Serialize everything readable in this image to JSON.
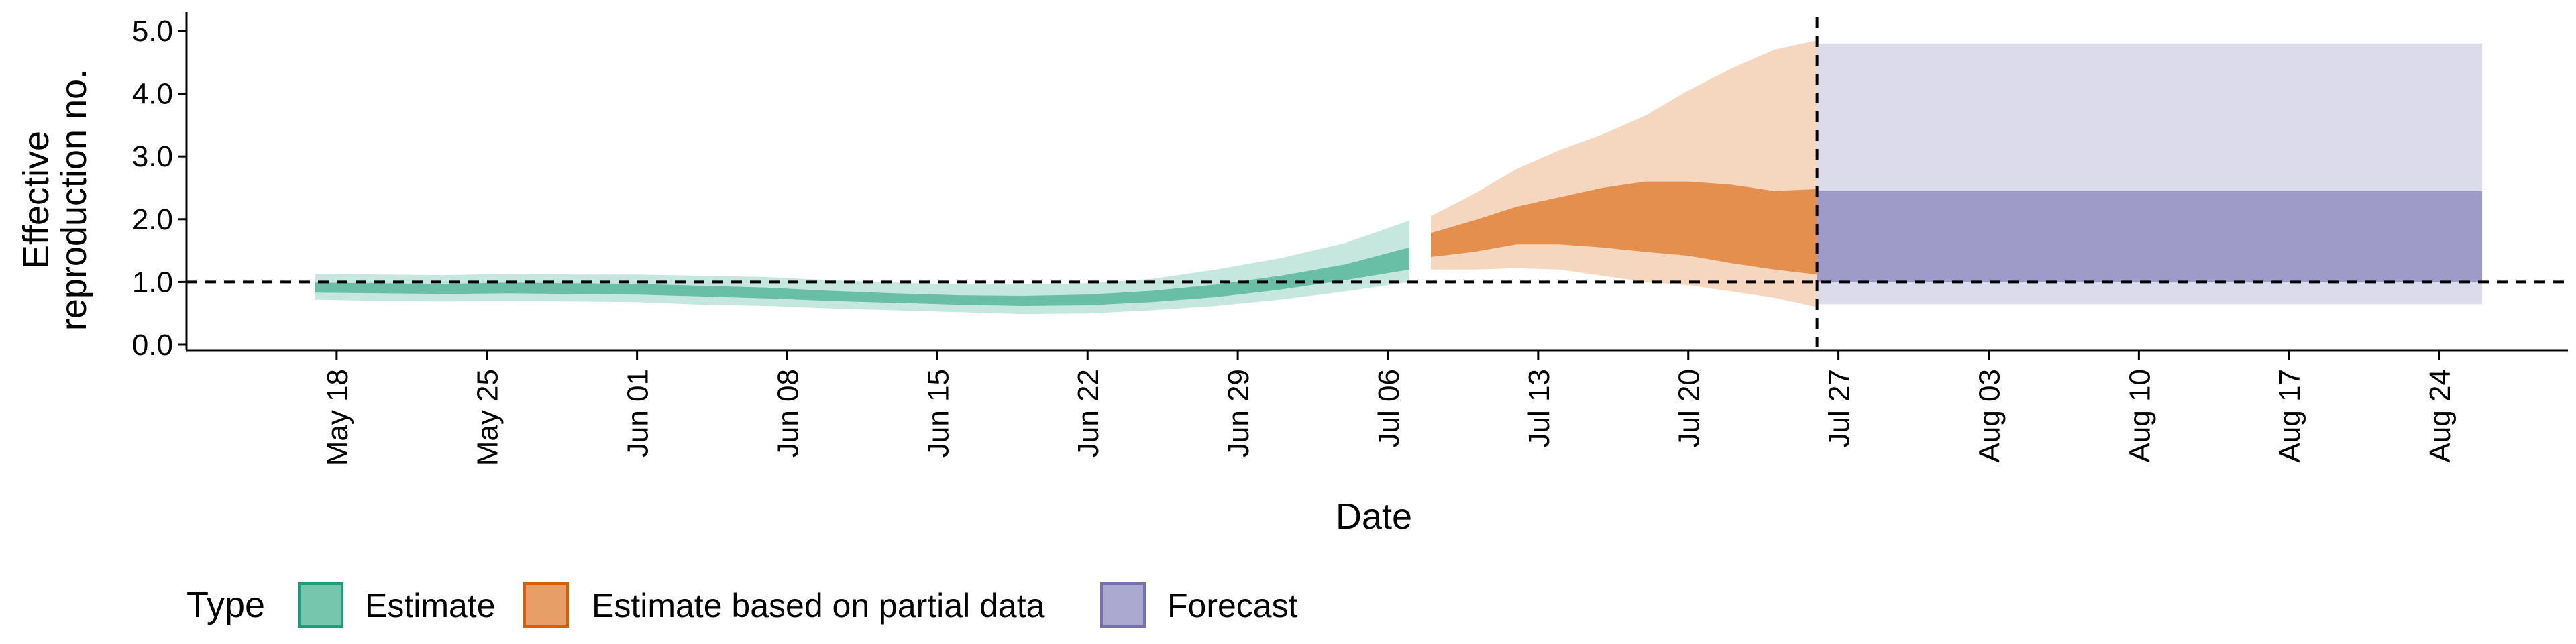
{
  "chart_data": {
    "type": "area",
    "xlabel": "Date",
    "ylabel": [
      "Effective",
      "reproduction no."
    ],
    "ylim": [
      0,
      5
    ],
    "y_ticks": [
      "0.0",
      "1.0",
      "2.0",
      "3.0",
      "4.0",
      "5.0"
    ],
    "y_tick_values": [
      0,
      1,
      2,
      3,
      4,
      5
    ],
    "x_ticks": [
      {
        "label": "May 18",
        "date": "2020-05-18"
      },
      {
        "label": "May 25",
        "date": "2020-05-25"
      },
      {
        "label": "Jun 01",
        "date": "2020-06-01"
      },
      {
        "label": "Jun 08",
        "date": "2020-06-08"
      },
      {
        "label": "Jun 15",
        "date": "2020-06-15"
      },
      {
        "label": "Jun 22",
        "date": "2020-06-22"
      },
      {
        "label": "Jun 29",
        "date": "2020-06-29"
      },
      {
        "label": "Jul 06",
        "date": "2020-07-06"
      },
      {
        "label": "Jul 13",
        "date": "2020-07-13"
      },
      {
        "label": "Jul 20",
        "date": "2020-07-20"
      },
      {
        "label": "Jul 27",
        "date": "2020-07-27"
      },
      {
        "label": "Aug 03",
        "date": "2020-08-03"
      },
      {
        "label": "Aug 10",
        "date": "2020-08-10"
      },
      {
        "label": "Aug 17",
        "date": "2020-08-17"
      },
      {
        "label": "Aug 24",
        "date": "2020-08-24"
      }
    ],
    "xlim": [
      "2020-05-11",
      "2020-08-30"
    ],
    "reference_line_y": 1.0,
    "forecast_start": "2020-07-26",
    "legend_title": "Type",
    "legend_position": "bottom",
    "series": [
      {
        "name": "Estimate",
        "color": "#1b9e77",
        "outer_opacity": 0.25,
        "inner_opacity": 0.55,
        "x": [
          "2020-05-17",
          "2020-05-20",
          "2020-05-23",
          "2020-05-26",
          "2020-05-29",
          "2020-06-01",
          "2020-06-04",
          "2020-06-07",
          "2020-06-10",
          "2020-06-13",
          "2020-06-16",
          "2020-06-19",
          "2020-06-22",
          "2020-06-25",
          "2020-06-28",
          "2020-07-01",
          "2020-07-04",
          "2020-07-07"
        ],
        "outer_lower": [
          0.72,
          0.7,
          0.69,
          0.7,
          0.69,
          0.68,
          0.64,
          0.62,
          0.58,
          0.55,
          0.52,
          0.49,
          0.5,
          0.55,
          0.62,
          0.72,
          0.85,
          1.0
        ],
        "outer_upper": [
          1.13,
          1.12,
          1.11,
          1.13,
          1.12,
          1.12,
          1.1,
          1.08,
          1.03,
          0.99,
          0.96,
          0.96,
          0.98,
          1.05,
          1.2,
          1.38,
          1.62,
          1.98
        ],
        "inner_lower": [
          0.83,
          0.82,
          0.81,
          0.82,
          0.81,
          0.8,
          0.77,
          0.74,
          0.7,
          0.67,
          0.64,
          0.62,
          0.63,
          0.68,
          0.76,
          0.88,
          1.03,
          1.2
        ],
        "inner_upper": [
          0.99,
          0.98,
          0.97,
          0.99,
          0.98,
          0.97,
          0.94,
          0.91,
          0.86,
          0.82,
          0.79,
          0.78,
          0.8,
          0.86,
          0.96,
          1.1,
          1.28,
          1.55
        ]
      },
      {
        "name": "Estimate based on partial data",
        "color": "#d95f02",
        "outer_opacity": 0.25,
        "inner_opacity": 0.6,
        "x": [
          "2020-07-08",
          "2020-07-10",
          "2020-07-12",
          "2020-07-14",
          "2020-07-16",
          "2020-07-18",
          "2020-07-20",
          "2020-07-22",
          "2020-07-24",
          "2020-07-26"
        ],
        "outer_lower": [
          1.2,
          1.2,
          1.22,
          1.2,
          1.1,
          1.0,
          0.95,
          0.85,
          0.75,
          0.6
        ],
        "outer_upper": [
          2.05,
          2.4,
          2.8,
          3.1,
          3.35,
          3.65,
          4.05,
          4.4,
          4.7,
          4.85
        ],
        "inner_lower": [
          1.4,
          1.48,
          1.6,
          1.6,
          1.55,
          1.48,
          1.42,
          1.3,
          1.2,
          1.12
        ],
        "inner_upper": [
          1.78,
          1.98,
          2.2,
          2.35,
          2.5,
          2.6,
          2.6,
          2.55,
          2.45,
          2.48
        ]
      },
      {
        "name": "Forecast",
        "color": "#7570b3",
        "outer_opacity": 0.25,
        "inner_opacity": 0.6,
        "x": [
          "2020-07-26",
          "2020-08-26"
        ],
        "outer_lower": [
          0.65,
          0.65
        ],
        "outer_upper": [
          4.8,
          4.8
        ],
        "inner_lower": [
          1.0,
          1.0
        ],
        "inner_upper": [
          2.45,
          2.45
        ]
      }
    ]
  }
}
